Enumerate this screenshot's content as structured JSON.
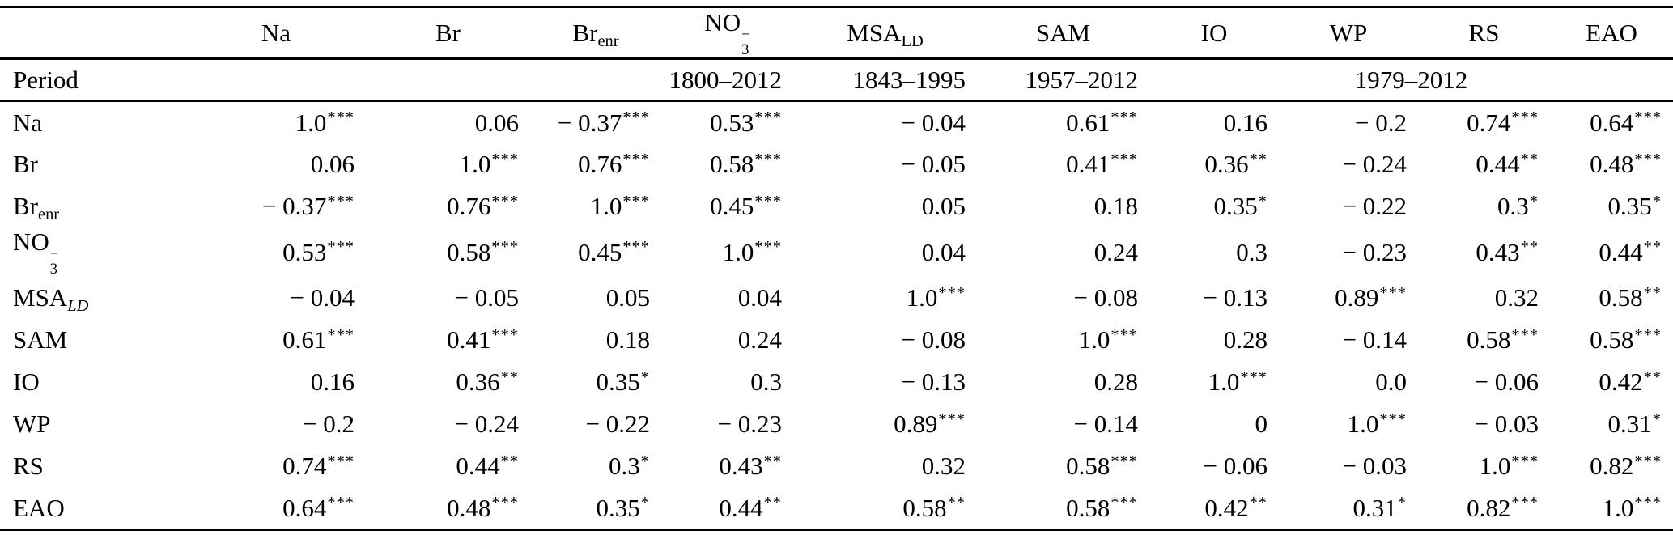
{
  "table": {
    "columns": [
      {
        "base": "Na"
      },
      {
        "base": "Br"
      },
      {
        "base": "Br",
        "sub": "enr"
      },
      {
        "base": "NO",
        "sub": "3",
        "sup": "−"
      },
      {
        "base": "MSA",
        "sub": "LD"
      },
      {
        "base": "SAM"
      },
      {
        "base": "IO"
      },
      {
        "base": "WP"
      },
      {
        "base": "RS"
      },
      {
        "base": "EAO"
      }
    ],
    "period": {
      "label": "Period",
      "spans": [
        {
          "text": "1800–2012",
          "cols": 4
        },
        {
          "text": "1843–1995",
          "cols": 1
        },
        {
          "text": "1957–2012",
          "cols": 1
        },
        {
          "text": "1979–2012",
          "cols": 4
        }
      ]
    },
    "rows": [
      {
        "label": {
          "base": "Na"
        },
        "values": [
          "1.0***",
          "0.06",
          "− 0.37***",
          "0.53***",
          "− 0.04",
          "0.61***",
          "0.16",
          "− 0.2",
          "0.74***",
          "0.64***"
        ]
      },
      {
        "label": {
          "base": "Br"
        },
        "values": [
          "0.06",
          "1.0***",
          "0.76***",
          "0.58***",
          "− 0.05",
          "0.41***",
          "0.36**",
          "− 0.24",
          "0.44**",
          "0.48***"
        ]
      },
      {
        "label": {
          "base": "Br",
          "sub": "enr"
        },
        "values": [
          "− 0.37***",
          "0.76***",
          "1.0***",
          "0.45***",
          "0.05",
          "0.18",
          "0.35*",
          "− 0.22",
          "0.3*",
          "0.35*"
        ]
      },
      {
        "label": {
          "base": "NO",
          "sub": "3",
          "sup": "−"
        },
        "values": [
          "0.53***",
          "0.58***",
          "0.45***",
          "1.0***",
          "0.04",
          "0.24",
          "0.3",
          "− 0.23",
          "0.43**",
          "0.44**"
        ]
      },
      {
        "label": {
          "base": "MSA",
          "sub": "LD",
          "sub_italic": true
        },
        "values": [
          "− 0.04",
          "− 0.05",
          "0.05",
          "0.04",
          "1.0***",
          "− 0.08",
          "− 0.13",
          "0.89***",
          "0.32",
          "0.58**"
        ]
      },
      {
        "label": {
          "base": "SAM"
        },
        "values": [
          "0.61***",
          "0.41***",
          "0.18",
          "0.24",
          "− 0.08",
          "1.0***",
          "0.28",
          "− 0.14",
          "0.58***",
          "0.58***"
        ]
      },
      {
        "label": {
          "base": "IO"
        },
        "values": [
          "0.16",
          "0.36**",
          "0.35*",
          "0.3",
          "− 0.13",
          "0.28",
          "1.0***",
          "0.0",
          "− 0.06",
          "0.42**"
        ]
      },
      {
        "label": {
          "base": "WP"
        },
        "values": [
          "− 0.2",
          "− 0.24",
          "− 0.22",
          "− 0.23",
          "0.89***",
          "− 0.14",
          "0",
          "1.0***",
          "− 0.03",
          "0.31*"
        ]
      },
      {
        "label": {
          "base": "RS"
        },
        "values": [
          "0.74***",
          "0.44**",
          "0.3*",
          "0.43**",
          "0.32",
          "0.58***",
          "− 0.06",
          "− 0.03",
          "1.0***",
          "0.82***"
        ]
      },
      {
        "label": {
          "base": "EAO"
        },
        "values": [
          "0.64***",
          "0.48***",
          "0.35*",
          "0.44**",
          "0.58**",
          "0.58***",
          "0.42**",
          "0.31*",
          "0.82***",
          "1.0***"
        ]
      }
    ]
  },
  "colors": {
    "text": "#000000",
    "background": "#ffffff",
    "rule": "#000000"
  }
}
